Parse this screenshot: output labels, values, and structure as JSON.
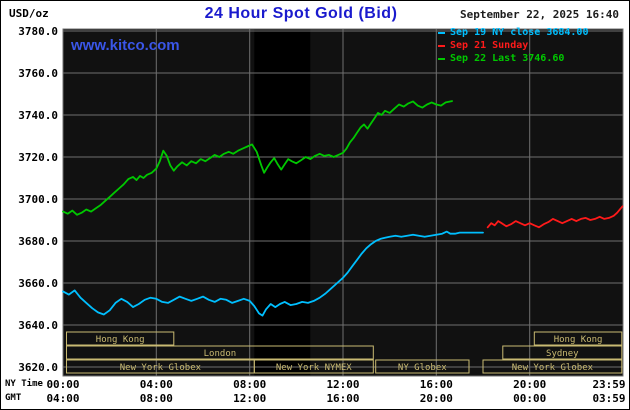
{
  "header": {
    "units_label": "USD/oz",
    "title": "24 Hour Spot Gold (Bid)",
    "title_color": "#1a1acd",
    "datetime": "September 22, 2025 16:40"
  },
  "watermark": {
    "text": "www.kitco.com",
    "color": "#3a56e8"
  },
  "legend": {
    "items": [
      {
        "label": "Sep 19 NY close 3684.00",
        "color": "#00bfff"
      },
      {
        "label": "Sep 21 Sunday",
        "color": "#ff1a1a"
      },
      {
        "label": "Sep 22 Last 3746.60",
        "color": "#00c800"
      }
    ]
  },
  "chart_data": {
    "type": "line",
    "title": "24 Hour Spot Gold (Bid)",
    "plot_bg": "#111111",
    "grid": true,
    "grid_color": "#6f6f6f",
    "session_color": "#c9ba72",
    "legend_position": "top-right",
    "bands": [
      {
        "t0": 8.2,
        "t1": 10.6,
        "color": "#000000"
      }
    ],
    "y_axis": {
      "label": "USD/oz",
      "range": [
        3620,
        3780
      ],
      "tick_step": 20,
      "tick_labels": [
        "3620.0",
        "3640.0",
        "3660.0",
        "3680.0",
        "3700.0",
        "3720.0",
        "3740.0",
        "3760.0",
        "3780.0"
      ]
    },
    "x_axis": {
      "ny_caption": "NY Time",
      "gmt_caption": "GMT",
      "range_hours": [
        0,
        24
      ],
      "ticks": [
        {
          "label": "00:00",
          "gmt": "04:00",
          "hour": 0
        },
        {
          "label": "04:00",
          "gmt": "08:00",
          "hour": 4
        },
        {
          "label": "08:00",
          "gmt": "12:00",
          "hour": 8
        },
        {
          "label": "12:00",
          "gmt": "16:00",
          "hour": 12
        },
        {
          "label": "16:00",
          "gmt": "20:00",
          "hour": 16
        },
        {
          "label": "20:00",
          "gmt": "00:00",
          "hour": 20
        },
        {
          "label": "23:59",
          "gmt": "03:59",
          "hour": 24
        }
      ]
    },
    "sessions": [
      {
        "label": "Hong Kong",
        "row": 0,
        "t0": 0.15,
        "t1": 4.75
      },
      {
        "label": "Hong Kong",
        "row": 0,
        "t0": 20.2,
        "t1": 23.95
      },
      {
        "label": "London",
        "row": 1,
        "t0": 0.15,
        "t1": 13.3
      },
      {
        "label": "Sydney",
        "row": 1,
        "t0": 18.85,
        "t1": 23.95
      },
      {
        "label": "New York Globex",
        "row": 2,
        "t0": 0.15,
        "t1": 8.2
      },
      {
        "label": "New York NYMEX",
        "row": 2,
        "t0": 8.2,
        "t1": 13.3
      },
      {
        "label": "NY Globex",
        "row": 2,
        "t0": 13.4,
        "t1": 17.4
      },
      {
        "label": "New York Globex",
        "row": 2,
        "t0": 18.0,
        "t1": 23.95
      }
    ],
    "series": [
      {
        "name": "Sep 19 NY close 3684.00",
        "color": "#00bfff",
        "points": [
          [
            0,
            3656
          ],
          [
            0.25,
            3654.5
          ],
          [
            0.5,
            3656.5
          ],
          [
            0.75,
            3653
          ],
          [
            1.0,
            3650.5
          ],
          [
            1.25,
            3648
          ],
          [
            1.5,
            3646
          ],
          [
            1.75,
            3645
          ],
          [
            2.0,
            3647
          ],
          [
            2.25,
            3650.5
          ],
          [
            2.5,
            3652.5
          ],
          [
            2.75,
            3651
          ],
          [
            3.0,
            3648.5
          ],
          [
            3.25,
            3650
          ],
          [
            3.5,
            3652
          ],
          [
            3.75,
            3653
          ],
          [
            4.0,
            3652.5
          ],
          [
            4.25,
            3651
          ],
          [
            4.5,
            3650.5
          ],
          [
            4.75,
            3652
          ],
          [
            5.0,
            3653.5
          ],
          [
            5.25,
            3652.5
          ],
          [
            5.5,
            3651.5
          ],
          [
            5.75,
            3652.5
          ],
          [
            6.0,
            3653.5
          ],
          [
            6.25,
            3652
          ],
          [
            6.5,
            3651
          ],
          [
            6.75,
            3652.5
          ],
          [
            7.0,
            3652
          ],
          [
            7.25,
            3650.5
          ],
          [
            7.5,
            3651.5
          ],
          [
            7.75,
            3652.5
          ],
          [
            8.0,
            3651.5
          ],
          [
            8.2,
            3649
          ],
          [
            8.4,
            3645.5
          ],
          [
            8.55,
            3644.5
          ],
          [
            8.7,
            3647.5
          ],
          [
            8.9,
            3650
          ],
          [
            9.1,
            3648.5
          ],
          [
            9.3,
            3650
          ],
          [
            9.5,
            3651
          ],
          [
            9.75,
            3649.5
          ],
          [
            10.0,
            3650
          ],
          [
            10.25,
            3651
          ],
          [
            10.5,
            3650.5
          ],
          [
            10.75,
            3651.5
          ],
          [
            11.0,
            3653
          ],
          [
            11.25,
            3655
          ],
          [
            11.5,
            3657.5
          ],
          [
            11.75,
            3660
          ],
          [
            12.0,
            3662.5
          ],
          [
            12.2,
            3665
          ],
          [
            12.4,
            3668
          ],
          [
            12.6,
            3671
          ],
          [
            12.8,
            3674
          ],
          [
            13.0,
            3676.5
          ],
          [
            13.2,
            3678.5
          ],
          [
            13.4,
            3680
          ],
          [
            13.6,
            3681
          ],
          [
            13.8,
            3681.5
          ],
          [
            14.0,
            3682
          ],
          [
            14.25,
            3682.5
          ],
          [
            14.5,
            3682
          ],
          [
            14.75,
            3682.5
          ],
          [
            15.0,
            3683
          ],
          [
            15.25,
            3682.5
          ],
          [
            15.5,
            3682
          ],
          [
            15.75,
            3682.5
          ],
          [
            16.0,
            3683
          ],
          [
            16.25,
            3683.5
          ],
          [
            16.45,
            3684.5
          ],
          [
            16.6,
            3683.5
          ],
          [
            16.8,
            3683.5
          ],
          [
            17.0,
            3684
          ],
          [
            17.5,
            3684
          ],
          [
            18.0,
            3684
          ]
        ]
      },
      {
        "name": "Sep 21 Sunday",
        "color": "#ff1a1a",
        "points": [
          [
            18.2,
            3686.5
          ],
          [
            18.35,
            3688.5
          ],
          [
            18.5,
            3687.5
          ],
          [
            18.65,
            3689.5
          ],
          [
            18.8,
            3688.5
          ],
          [
            19.0,
            3687
          ],
          [
            19.2,
            3688
          ],
          [
            19.4,
            3689.5
          ],
          [
            19.6,
            3688.5
          ],
          [
            19.8,
            3687.5
          ],
          [
            20.0,
            3688.5
          ],
          [
            20.2,
            3687.5
          ],
          [
            20.4,
            3686.5
          ],
          [
            20.6,
            3688
          ],
          [
            20.8,
            3689
          ],
          [
            21.0,
            3690.5
          ],
          [
            21.2,
            3689.5
          ],
          [
            21.4,
            3688.5
          ],
          [
            21.6,
            3689.5
          ],
          [
            21.8,
            3690.5
          ],
          [
            22.0,
            3689.5
          ],
          [
            22.2,
            3690.5
          ],
          [
            22.4,
            3691
          ],
          [
            22.6,
            3690
          ],
          [
            22.8,
            3690.5
          ],
          [
            23.0,
            3691.5
          ],
          [
            23.2,
            3690.5
          ],
          [
            23.4,
            3691
          ],
          [
            23.6,
            3692
          ],
          [
            23.75,
            3693.5
          ],
          [
            23.9,
            3695.5
          ],
          [
            23.98,
            3696.5
          ]
        ]
      },
      {
        "name": "Sep 22 Last 3746.60",
        "color": "#00c800",
        "points": [
          [
            0,
            3694
          ],
          [
            0.2,
            3693
          ],
          [
            0.4,
            3694.5
          ],
          [
            0.6,
            3692.5
          ],
          [
            0.8,
            3693.5
          ],
          [
            1.0,
            3695
          ],
          [
            1.2,
            3694
          ],
          [
            1.4,
            3695.5
          ],
          [
            1.6,
            3697
          ],
          [
            1.8,
            3699
          ],
          [
            2.0,
            3701
          ],
          [
            2.2,
            3703
          ],
          [
            2.4,
            3705
          ],
          [
            2.6,
            3707
          ],
          [
            2.8,
            3709.5
          ],
          [
            3.0,
            3710.5
          ],
          [
            3.15,
            3709
          ],
          [
            3.3,
            3711
          ],
          [
            3.45,
            3710
          ],
          [
            3.6,
            3711.5
          ],
          [
            3.8,
            3712.5
          ],
          [
            4.0,
            3714.5
          ],
          [
            4.15,
            3718
          ],
          [
            4.3,
            3723
          ],
          [
            4.45,
            3720.5
          ],
          [
            4.6,
            3716
          ],
          [
            4.75,
            3713.5
          ],
          [
            4.9,
            3715.5
          ],
          [
            5.1,
            3717.5
          ],
          [
            5.3,
            3716
          ],
          [
            5.5,
            3718
          ],
          [
            5.7,
            3717
          ],
          [
            5.9,
            3719
          ],
          [
            6.1,
            3718
          ],
          [
            6.3,
            3719.5
          ],
          [
            6.5,
            3721
          ],
          [
            6.7,
            3720
          ],
          [
            6.9,
            3721.5
          ],
          [
            7.1,
            3722.5
          ],
          [
            7.3,
            3721.5
          ],
          [
            7.5,
            3723
          ],
          [
            7.7,
            3724
          ],
          [
            7.9,
            3725
          ],
          [
            8.1,
            3726
          ],
          [
            8.3,
            3722.5
          ],
          [
            8.5,
            3716
          ],
          [
            8.62,
            3712.5
          ],
          [
            8.75,
            3715
          ],
          [
            8.9,
            3717.5
          ],
          [
            9.05,
            3719.5
          ],
          [
            9.2,
            3716.5
          ],
          [
            9.35,
            3714
          ],
          [
            9.5,
            3716.5
          ],
          [
            9.65,
            3719
          ],
          [
            9.8,
            3718
          ],
          [
            10.0,
            3717
          ],
          [
            10.2,
            3718.5
          ],
          [
            10.4,
            3720
          ],
          [
            10.6,
            3719
          ],
          [
            10.8,
            3720.5
          ],
          [
            11.0,
            3721.5
          ],
          [
            11.2,
            3720.5
          ],
          [
            11.4,
            3721
          ],
          [
            11.6,
            3720
          ],
          [
            11.8,
            3721
          ],
          [
            12.0,
            3722
          ],
          [
            12.15,
            3724
          ],
          [
            12.3,
            3727
          ],
          [
            12.45,
            3729
          ],
          [
            12.6,
            3731.5
          ],
          [
            12.75,
            3734
          ],
          [
            12.9,
            3735.5
          ],
          [
            13.05,
            3733.5
          ],
          [
            13.2,
            3736
          ],
          [
            13.35,
            3738.5
          ],
          [
            13.5,
            3741
          ],
          [
            13.65,
            3740
          ],
          [
            13.8,
            3742
          ],
          [
            14.0,
            3741
          ],
          [
            14.2,
            3743
          ],
          [
            14.4,
            3745
          ],
          [
            14.6,
            3744
          ],
          [
            14.8,
            3745.5
          ],
          [
            15.0,
            3746.5
          ],
          [
            15.2,
            3744.5
          ],
          [
            15.4,
            3743.5
          ],
          [
            15.6,
            3745
          ],
          [
            15.8,
            3746
          ],
          [
            16.0,
            3745
          ],
          [
            16.2,
            3744.5
          ],
          [
            16.4,
            3746
          ],
          [
            16.67,
            3746.6
          ]
        ]
      }
    ]
  }
}
